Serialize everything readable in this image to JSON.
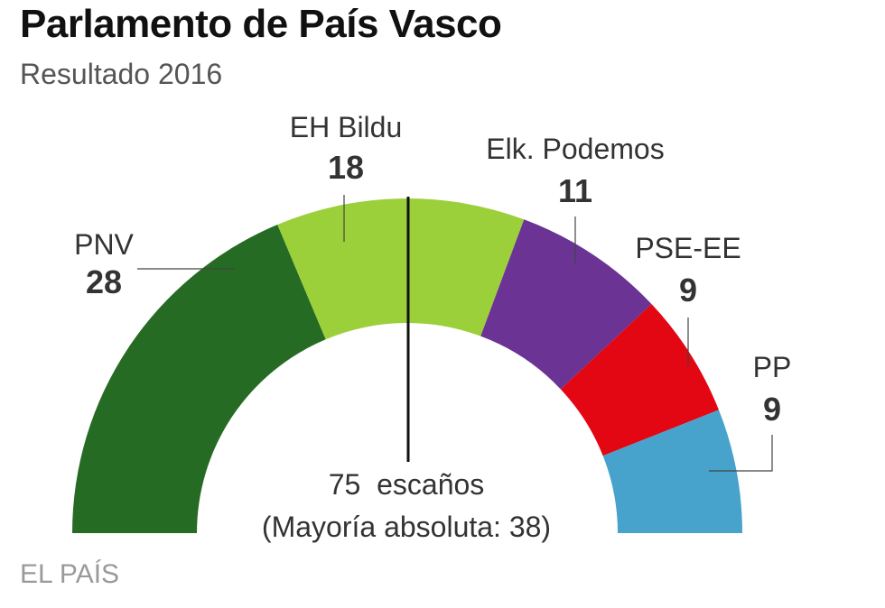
{
  "header": {
    "title": "Parlamento de País Vasco",
    "subtitle": "Resultado 2016"
  },
  "footer": {
    "source": "EL PAÍS"
  },
  "center": {
    "total_label": "75  escaños",
    "majority_label": "(Mayoría absoluta: 38)"
  },
  "chart_data": {
    "type": "pie",
    "variant": "hemicycle",
    "title": "Parlamento de País Vasco",
    "subtitle": "Resultado 2016",
    "total_seats": 75,
    "majority": 38,
    "categories": [
      "PNV",
      "EH Bildu",
      "Elk. Podemos",
      "PSE-EE",
      "PP"
    ],
    "values": [
      28,
      18,
      11,
      9,
      9
    ],
    "colors": [
      "#266b23",
      "#9bd03a",
      "#6b3394",
      "#e30613",
      "#47a3cc"
    ],
    "majority_line": "vertical center line"
  }
}
